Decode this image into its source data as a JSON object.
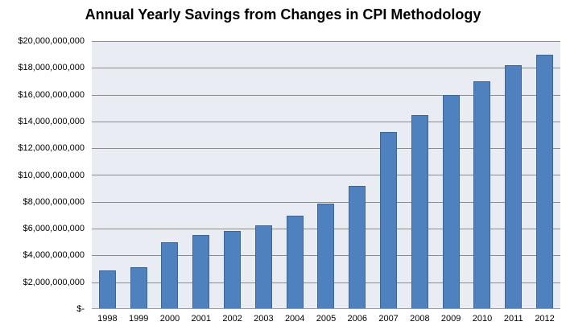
{
  "chart_data": {
    "type": "bar",
    "title": "Annual Yearly Savings from Changes in CPI Methodology",
    "xlabel": "",
    "ylabel": "",
    "categories": [
      "1998",
      "1999",
      "2000",
      "2001",
      "2002",
      "2003",
      "2004",
      "2005",
      "2006",
      "2007",
      "2008",
      "2009",
      "2010",
      "2011",
      "2012"
    ],
    "values": [
      2900000000,
      3100000000,
      5000000000,
      5500000000,
      5800000000,
      6250000000,
      7000000000,
      7900000000,
      9200000000,
      13200000000,
      14450000000,
      16000000000,
      17000000000,
      18200000000,
      19000000000
    ],
    "values_unit": "USD",
    "ylim": [
      0,
      20000000000
    ],
    "ytick_interval": 2000000000,
    "ytick_labels": [
      "$-",
      "$2,000,000,000",
      "$4,000,000,000",
      "$6,000,000,000",
      "$8,000,000,000",
      "$10,000,000,000",
      "$12,000,000,000",
      "$14,000,000,000",
      "$16,000,000,000",
      "$18,000,000,000",
      "$20,000,000,000"
    ],
    "grid": true,
    "legend": "none",
    "colors": {
      "bar_fill": "#4E81BD",
      "bar_border": "#3D6696",
      "plot_background": "#E9EDF3",
      "gridline": "#8C8C8C",
      "axis_line": "#9B9B9B",
      "title_text": "#000000",
      "label_text": "#000000",
      "page_background": "#FFFFFF"
    }
  }
}
